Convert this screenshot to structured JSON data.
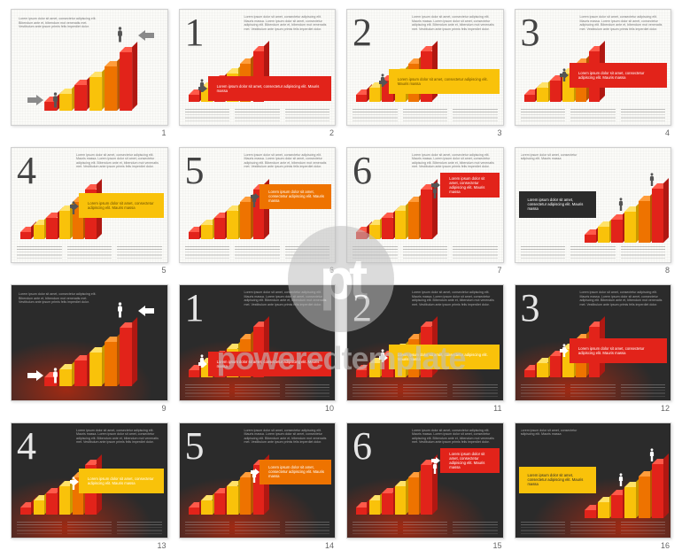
{
  "global": {
    "watermark_logo": "pt",
    "watermark_text": "poweredtemplate",
    "colors": {
      "red_front": "#e2231a",
      "red_side": "#b01812",
      "red_top": "#ff5a4a",
      "yellow_front": "#f9c20a",
      "yellow_side": "#c99a00",
      "yellow_top": "#ffe268",
      "orange_front": "#ee7300",
      "orange_side": "#b75600",
      "orange_top": "#ff9d3b",
      "banner_red": "#e2231a",
      "banner_yellow": "#f9c20a",
      "banner_orange": "#ee7300",
      "banner_dark": "#2b2b2b",
      "arrow_light": "#8a8a8a",
      "arrow_dark": "#ffffff",
      "figure_light": "#555555",
      "figure_dark": "#ffffff",
      "text_light": "#777777",
      "text_dark": "#aaaaaa"
    },
    "staircase": {
      "step_count": 6,
      "step_heights_pct": [
        22,
        35,
        48,
        61,
        78,
        100
      ],
      "step_colors": [
        "red",
        "yellow",
        "red",
        "yellow",
        "orange",
        "red"
      ]
    },
    "placeholder_heading": "Lorem ipsum dolor sit amet, consectetur adipiscing elit. Mauris massa",
    "placeholder_body": "Lorem ipsum dolor sit amet, consectetur adipiscing elit. Bibendum ante et, bibendum mot venenatis met. Vestibulum ante ipsum primis felis imperdiet dolor.",
    "banner_text": "Lorem ipsum dolor sit amet, consectetur adipiscing elit. Mauris massa"
  },
  "slides": [
    {
      "idx": 1,
      "theme": "light",
      "layout": "intro",
      "big": "",
      "banner": null
    },
    {
      "idx": 2,
      "theme": "light",
      "layout": "step",
      "big": "1",
      "banner": {
        "color": "banner_red",
        "top_pct": 58
      }
    },
    {
      "idx": 3,
      "theme": "light",
      "layout": "step",
      "big": "2",
      "banner": {
        "color": "banner_yellow",
        "top_pct": 52
      }
    },
    {
      "idx": 4,
      "theme": "light",
      "layout": "step",
      "big": "3",
      "banner": {
        "color": "banner_red",
        "top_pct": 46
      }
    },
    {
      "idx": 5,
      "theme": "light",
      "layout": "step",
      "big": "4",
      "banner": {
        "color": "banner_yellow",
        "top_pct": 40
      }
    },
    {
      "idx": 6,
      "theme": "light",
      "layout": "step",
      "big": "5",
      "banner": {
        "color": "banner_orange",
        "top_pct": 32
      }
    },
    {
      "idx": 7,
      "theme": "light",
      "layout": "step",
      "big": "6",
      "banner": {
        "color": "banner_red",
        "top_pct": 22
      }
    },
    {
      "idx": 8,
      "theme": "light",
      "layout": "summary",
      "big": "",
      "banner": {
        "color": "banner_dark",
        "top_pct": 38
      }
    },
    {
      "idx": 9,
      "theme": "dark",
      "layout": "intro",
      "big": "",
      "banner": null
    },
    {
      "idx": 10,
      "theme": "dark",
      "layout": "step",
      "big": "1",
      "banner": {
        "color": "banner_red",
        "top_pct": 58
      }
    },
    {
      "idx": 11,
      "theme": "dark",
      "layout": "step",
      "big": "2",
      "banner": {
        "color": "banner_yellow",
        "top_pct": 52
      }
    },
    {
      "idx": 12,
      "theme": "dark",
      "layout": "step",
      "big": "3",
      "banner": {
        "color": "banner_red",
        "top_pct": 46
      }
    },
    {
      "idx": 13,
      "theme": "dark",
      "layout": "step",
      "big": "4",
      "banner": {
        "color": "banner_yellow",
        "top_pct": 40
      }
    },
    {
      "idx": 14,
      "theme": "dark",
      "layout": "step",
      "big": "5",
      "banner": {
        "color": "banner_orange",
        "top_pct": 32
      }
    },
    {
      "idx": 15,
      "theme": "dark",
      "layout": "step",
      "big": "6",
      "banner": {
        "color": "banner_red",
        "top_pct": 22
      }
    },
    {
      "idx": 16,
      "theme": "dark",
      "layout": "summary",
      "big": "",
      "banner": {
        "color": "banner_yellow",
        "top_pct": 38
      }
    }
  ]
}
